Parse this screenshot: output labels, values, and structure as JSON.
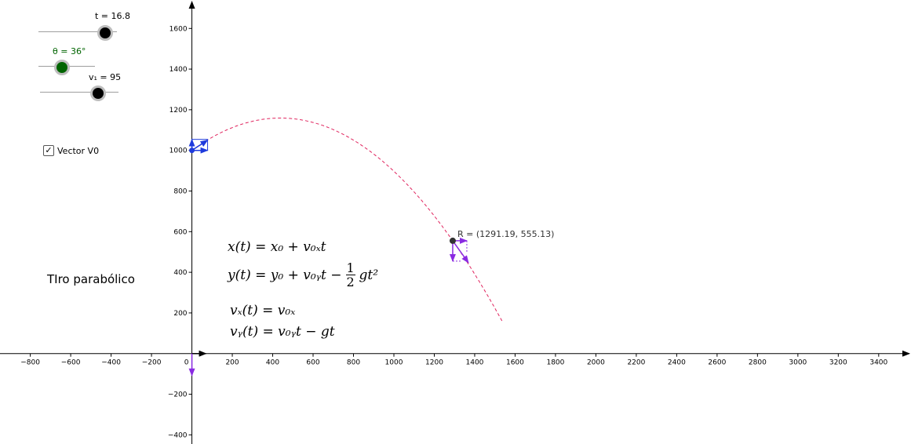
{
  "sliders": {
    "t": {
      "label": "t = 16.8",
      "value": 16.8,
      "color": "#000000"
    },
    "theta": {
      "label": "θ = 36°",
      "value": 36,
      "color": "#006400"
    },
    "v1": {
      "label": "v₁ = 95",
      "value": 95,
      "color": "#000000"
    }
  },
  "checkbox": {
    "label": "Vector V0",
    "checked": true,
    "mark": "✓"
  },
  "title": "TIro parabólico",
  "equations": {
    "x": "x(t) = x₀ + v₀ₓt",
    "y_lhs": "y(t) = y₀ + v₀ᵧt −",
    "y_frac_num": "1",
    "y_frac_den": "2",
    "y_rhs": "gt²",
    "vx": "vₓ(t) = v₀ₓ",
    "vy": "vᵧ(t) = v₀ᵧt − gt"
  },
  "point": {
    "label": "R = (1291.19, 555.13)",
    "x": 1291.19,
    "y": 555.13
  },
  "chart_data": {
    "type": "line",
    "x_ticks": [
      -800,
      -600,
      -400,
      -200,
      0,
      200,
      400,
      600,
      800,
      1000,
      1200,
      1400,
      1600,
      1800,
      2000,
      2200,
      2400,
      2600,
      2800,
      3000,
      3200,
      3400
    ],
    "y_ticks": [
      -400,
      -200,
      200,
      400,
      600,
      800,
      1000,
      1200,
      1400,
      1600
    ],
    "xlim": [
      -950,
      3560
    ],
    "ylim": [
      -445,
      1740
    ],
    "grid": false,
    "trajectory": {
      "x0": 0,
      "y0": 1000,
      "v0": 95,
      "angle_deg": 36,
      "g": 9.8,
      "t_max": 20,
      "color": "#e0245e"
    },
    "colors": {
      "velocity": "#8a2be2",
      "vector_v0": "#1f3bdc",
      "point": "#333333"
    }
  }
}
